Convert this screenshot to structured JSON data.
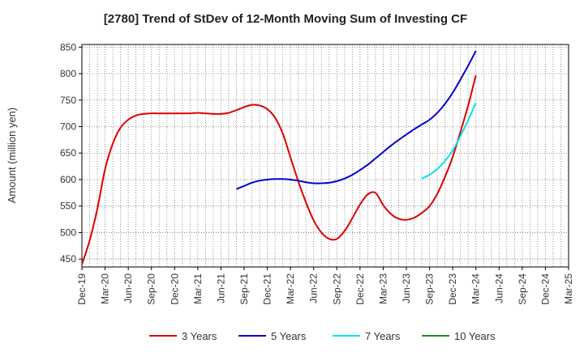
{
  "chart_data": {
    "type": "line",
    "title": "[2780]  Trend of StDev of 12-Month Moving Sum of Investing CF",
    "ylabel": "Amount (million yen)",
    "xlabel": "",
    "ylim": [
      435,
      855
    ],
    "yticks": [
      450,
      500,
      550,
      600,
      650,
      700,
      750,
      800,
      850
    ],
    "x_tick_labels": [
      "Dec-19",
      "Mar-20",
      "Jun-20",
      "Sep-20",
      "Dec-20",
      "Mar-21",
      "Jun-21",
      "Sep-21",
      "Dec-21",
      "Mar-22",
      "Jun-22",
      "Sep-22",
      "Dec-22",
      "Mar-23",
      "Jun-23",
      "Sep-23",
      "Dec-23",
      "Mar-24",
      "Jun-24",
      "Sep-24",
      "Dec-24",
      "Mar-25"
    ],
    "x_start": "2019-12",
    "x_end": "2025-03",
    "grid": true,
    "legend_position": "bottom",
    "series": [
      {
        "name": "3 Years",
        "color": "#dd0000",
        "points": [
          [
            "2019-12",
            440
          ],
          [
            "2020-01",
            485
          ],
          [
            "2020-02",
            545
          ],
          [
            "2020-03",
            620
          ],
          [
            "2020-04",
            668
          ],
          [
            "2020-05",
            698
          ],
          [
            "2020-06",
            713
          ],
          [
            "2020-07",
            721
          ],
          [
            "2020-08",
            724
          ],
          [
            "2020-09",
            725
          ],
          [
            "2020-10",
            725
          ],
          [
            "2020-11",
            725
          ],
          [
            "2020-12",
            725
          ],
          [
            "2021-01",
            725
          ],
          [
            "2021-02",
            725
          ],
          [
            "2021-03",
            726
          ],
          [
            "2021-04",
            725
          ],
          [
            "2021-05",
            724
          ],
          [
            "2021-06",
            724
          ],
          [
            "2021-07",
            726
          ],
          [
            "2021-08",
            731
          ],
          [
            "2021-09",
            737
          ],
          [
            "2021-10",
            741
          ],
          [
            "2021-11",
            740
          ],
          [
            "2021-12",
            733
          ],
          [
            "2022-01",
            717
          ],
          [
            "2022-02",
            687
          ],
          [
            "2022-03",
            642
          ],
          [
            "2022-04",
            597
          ],
          [
            "2022-05",
            557
          ],
          [
            "2022-06",
            523
          ],
          [
            "2022-07",
            500
          ],
          [
            "2022-08",
            488
          ],
          [
            "2022-09",
            488
          ],
          [
            "2022-10",
            503
          ],
          [
            "2022-11",
            527
          ],
          [
            "2022-12",
            553
          ],
          [
            "2023-01",
            572
          ],
          [
            "2023-02",
            575
          ],
          [
            "2023-03",
            552
          ],
          [
            "2023-04",
            535
          ],
          [
            "2023-05",
            526
          ],
          [
            "2023-06",
            524
          ],
          [
            "2023-07",
            528
          ],
          [
            "2023-08",
            537
          ],
          [
            "2023-09",
            550
          ],
          [
            "2023-10",
            573
          ],
          [
            "2023-11",
            605
          ],
          [
            "2023-12",
            643
          ],
          [
            "2024-01",
            690
          ],
          [
            "2024-02",
            740
          ],
          [
            "2024-03",
            797
          ]
        ]
      },
      {
        "name": "5 Years",
        "color": "#0000cc",
        "points": [
          [
            "2021-08",
            582
          ],
          [
            "2021-09",
            588
          ],
          [
            "2021-10",
            594
          ],
          [
            "2021-11",
            598
          ],
          [
            "2021-12",
            600
          ],
          [
            "2022-01",
            601
          ],
          [
            "2022-02",
            601
          ],
          [
            "2022-03",
            600
          ],
          [
            "2022-04",
            598
          ],
          [
            "2022-05",
            595
          ],
          [
            "2022-06",
            593
          ],
          [
            "2022-07",
            593
          ],
          [
            "2022-08",
            594
          ],
          [
            "2022-09",
            597
          ],
          [
            "2022-10",
            602
          ],
          [
            "2022-11",
            609
          ],
          [
            "2022-12",
            618
          ],
          [
            "2023-01",
            628
          ],
          [
            "2023-02",
            640
          ],
          [
            "2023-03",
            652
          ],
          [
            "2023-04",
            664
          ],
          [
            "2023-05",
            675
          ],
          [
            "2023-06",
            685
          ],
          [
            "2023-07",
            695
          ],
          [
            "2023-08",
            704
          ],
          [
            "2023-09",
            713
          ],
          [
            "2023-10",
            726
          ],
          [
            "2023-11",
            743
          ],
          [
            "2023-12",
            764
          ],
          [
            "2024-01",
            789
          ],
          [
            "2024-02",
            815
          ],
          [
            "2024-03",
            843
          ]
        ]
      },
      {
        "name": "7 Years",
        "color": "#00e5e5",
        "points": [
          [
            "2023-08",
            602
          ],
          [
            "2023-09",
            609
          ],
          [
            "2023-10",
            620
          ],
          [
            "2023-11",
            635
          ],
          [
            "2023-12",
            655
          ],
          [
            "2024-01",
            682
          ],
          [
            "2024-02",
            712
          ],
          [
            "2024-03",
            745
          ]
        ]
      },
      {
        "name": "10 Years",
        "color": "#228b22",
        "points": []
      }
    ]
  }
}
